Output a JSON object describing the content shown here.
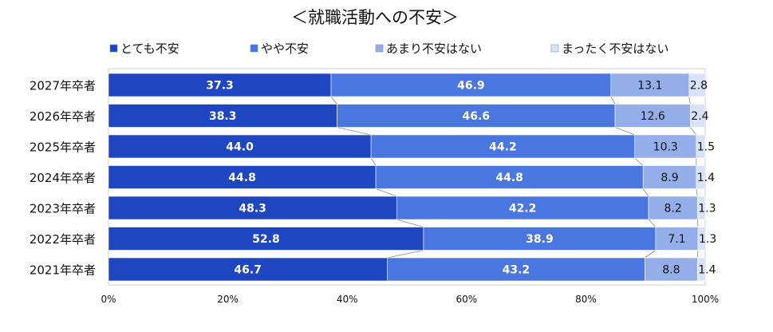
{
  "chart_data": {
    "type": "bar",
    "orientation": "horizontal",
    "stacked": true,
    "percent": true,
    "title": "＜就職活動への不安＞",
    "categories": [
      "2027年卒者",
      "2026年卒者",
      "2025年卒者",
      "2024年卒者",
      "2023年卒者",
      "2022年卒者",
      "2021年卒者"
    ],
    "series": [
      {
        "name": "とても不安",
        "color": "#1F46C1",
        "label_color": "light",
        "values": [
          37.3,
          38.3,
          44.0,
          44.8,
          48.3,
          52.8,
          46.7
        ],
        "labels": [
          "37.3",
          "38.3",
          "44.0",
          "44.8",
          "48.3",
          "52.8",
          "46.7"
        ]
      },
      {
        "name": "やや不安",
        "color": "#4A76E0",
        "label_color": "light",
        "values": [
          46.9,
          46.6,
          44.2,
          44.8,
          42.2,
          38.9,
          43.2
        ],
        "labels": [
          "46.9",
          "46.6",
          "44.2",
          "44.8",
          "42.2",
          "38.9",
          "43.2"
        ]
      },
      {
        "name": "あまり不安はない",
        "color": "#94AEEA",
        "label_color": "dark",
        "values": [
          13.1,
          12.6,
          10.3,
          8.9,
          8.2,
          7.1,
          8.8
        ],
        "labels": [
          "13.1",
          "12.6",
          "10.3",
          "8.9",
          "8.2",
          "7.1",
          "8.8"
        ]
      },
      {
        "name": "まったく不安はない",
        "color": "#D9E3F8",
        "label_color": "dark",
        "values": [
          2.8,
          2.4,
          1.5,
          1.4,
          1.3,
          1.3,
          1.4
        ],
        "labels": [
          "2.8",
          "2.4",
          "1.5",
          "1.4",
          "1.3",
          "1.3",
          "1.4"
        ]
      }
    ],
    "x_ticks": [
      "0%",
      "20%",
      "40%",
      "60%",
      "80%",
      "100%"
    ],
    "xlim": [
      0,
      100
    ],
    "legend": "top",
    "series_lines": true
  }
}
